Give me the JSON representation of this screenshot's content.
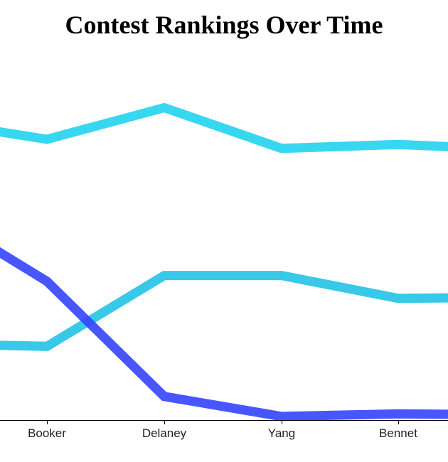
{
  "chart_data": {
    "type": "line",
    "title": "Contest Rankings Over Time",
    "xlabel": "",
    "ylabel": "",
    "categories": [
      "Booker",
      "Delaney",
      "Yang",
      "Bennet"
    ],
    "y_range": [
      0,
      100
    ],
    "grid": false,
    "legend": "none",
    "series": [
      {
        "color": "#22d3ee",
        "opacity": 0.9,
        "points": [
          {
            "x": "(start)",
            "y": 82.4
          },
          {
            "x": "Booker",
            "y": 77.3
          },
          {
            "x": "Delaney",
            "y": 86.0
          },
          {
            "x": "Yang",
            "y": 74.8
          },
          {
            "x": "Bennet",
            "y": 75.9
          },
          {
            "x": "(end)",
            "y": 74.5
          }
        ]
      },
      {
        "color": "#22c2e6",
        "opacity": 0.9,
        "points": [
          {
            "x": "(start)",
            "y": 21.0
          },
          {
            "x": "Booker",
            "y": 20.3
          },
          {
            "x": "Delaney",
            "y": 39.8
          },
          {
            "x": "Yang",
            "y": 39.8
          },
          {
            "x": "Bennet",
            "y": 33.5
          },
          {
            "x": "(end)",
            "y": 33.8
          }
        ]
      },
      {
        "color": "#3344ff",
        "opacity": 0.9,
        "points": [
          {
            "x": "(start)",
            "y": 58.0
          },
          {
            "x": "Booker",
            "y": 38.2
          },
          {
            "x": "Delaney",
            "y": 6.5
          },
          {
            "x": "Yang",
            "y": 1.0
          },
          {
            "x": "Bennet",
            "y": 1.7
          },
          {
            "x": "(end)",
            "y": 1.4
          }
        ]
      }
    ]
  }
}
